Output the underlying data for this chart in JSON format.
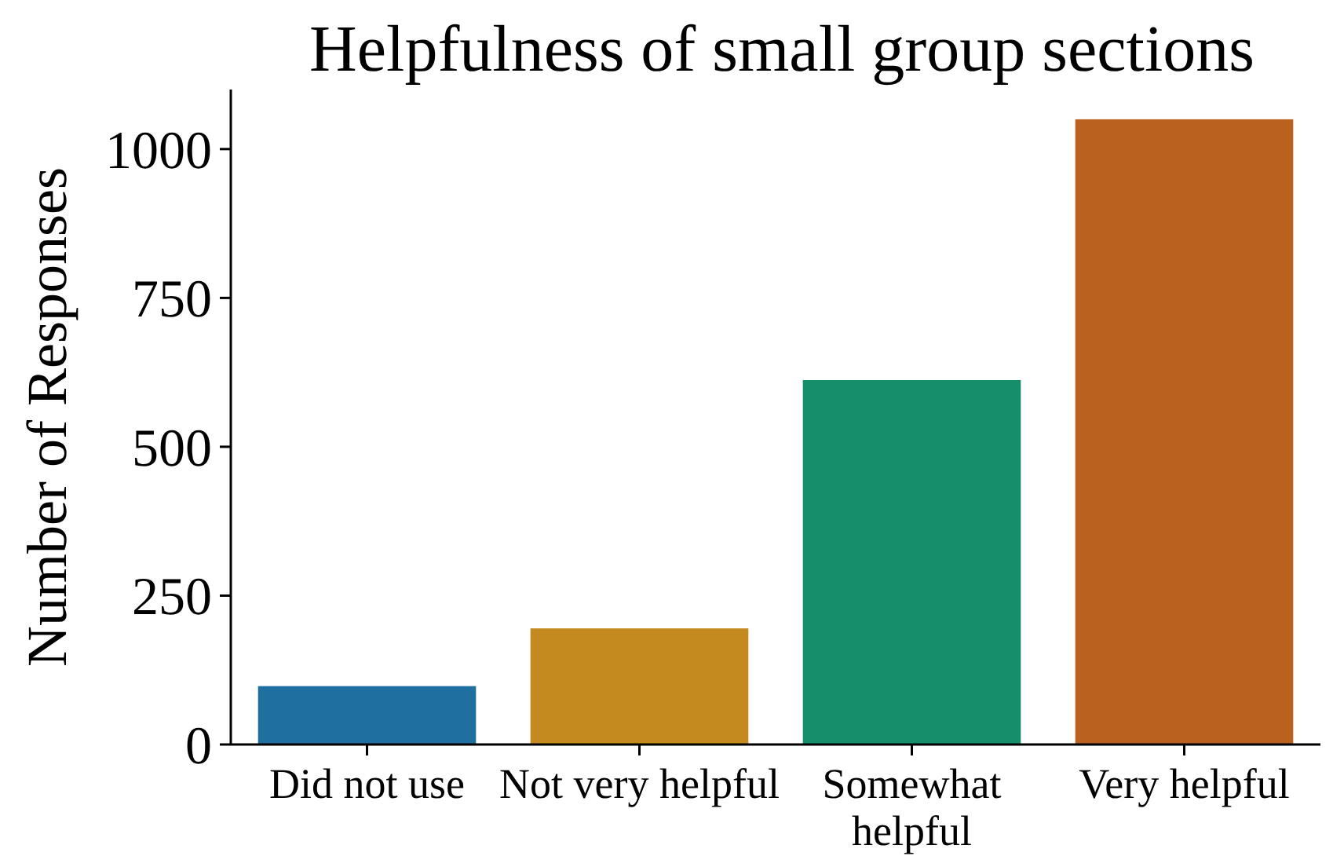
{
  "chart_data": {
    "type": "bar",
    "title": "Helpfulness of small group sections",
    "ylabel": "Number of Responses",
    "categories": [
      "Did not use",
      "Not very helpful",
      "Somewhat helpful",
      "Very helpful"
    ],
    "values": [
      98,
      195,
      612,
      1050
    ],
    "colors": [
      "#1f6fa0",
      "#c4891f",
      "#168e6c",
      "#b9611e"
    ],
    "ylim": [
      0,
      1100
    ],
    "yticks": [
      0,
      250,
      500,
      750,
      1000
    ],
    "grid": false
  }
}
